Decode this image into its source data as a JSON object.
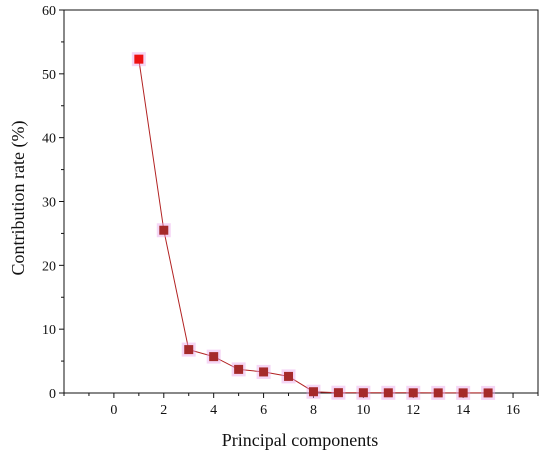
{
  "chart_data": {
    "type": "line",
    "title": "",
    "xlabel": "Principal components",
    "ylabel": "Contribution rate (%)",
    "xlim": [
      -2,
      17
    ],
    "ylim": [
      0,
      60
    ],
    "xticks": [
      0,
      2,
      4,
      6,
      8,
      10,
      12,
      14,
      16
    ],
    "yticks": [
      0,
      10,
      20,
      30,
      40,
      50,
      60
    ],
    "grid": false,
    "legend": "none",
    "series": [
      {
        "x": [
          1,
          2,
          3,
          4,
          5,
          6,
          7,
          8,
          9,
          10,
          11,
          12,
          13,
          14,
          15
        ],
        "values": [
          52.3,
          25.5,
          6.8,
          5.7,
          3.7,
          3.3,
          2.6,
          0.2,
          0.05,
          0.04,
          0.03,
          0.03,
          0.02,
          0.02,
          0.01
        ],
        "line_color": "#b22222",
        "first_marker_color": "#ee1111",
        "marker_color": "#a52a2a",
        "marker_glow": "#e9a3e9",
        "marker": "square"
      }
    ]
  }
}
